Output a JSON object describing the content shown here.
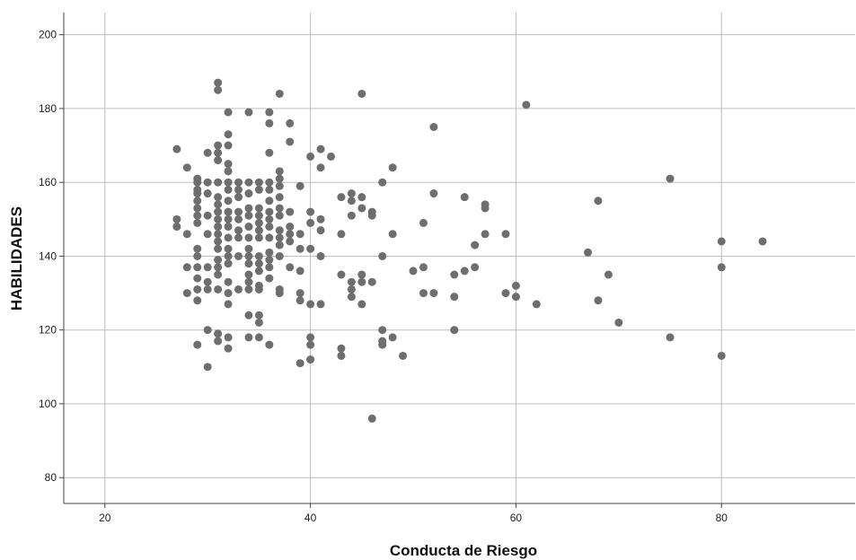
{
  "chart_data": {
    "type": "scatter",
    "xlabel": "Conducta de Riesgo",
    "ylabel": "HABILIDADES",
    "xlim": [
      16,
      93
    ],
    "ylim": [
      73,
      206
    ],
    "xticks": [
      20,
      40,
      60,
      80
    ],
    "yticks": [
      80,
      100,
      120,
      140,
      160,
      180,
      200
    ],
    "grid": true,
    "colors": {
      "point": "#6e6e6e",
      "grid": "#bdbdbd",
      "axis": "#444444"
    },
    "points": [
      [
        27,
        169
      ],
      [
        27,
        150
      ],
      [
        27,
        148
      ],
      [
        28,
        164
      ],
      [
        28,
        146
      ],
      [
        28,
        137
      ],
      [
        28,
        130
      ],
      [
        29,
        161
      ],
      [
        29,
        160
      ],
      [
        29,
        158
      ],
      [
        29,
        157
      ],
      [
        29,
        155
      ],
      [
        29,
        153
      ],
      [
        29,
        151
      ],
      [
        29,
        149
      ],
      [
        29,
        142
      ],
      [
        29,
        140
      ],
      [
        29,
        137
      ],
      [
        29,
        134
      ],
      [
        29,
        131
      ],
      [
        29,
        128
      ],
      [
        29,
        116
      ],
      [
        30,
        168
      ],
      [
        30,
        160
      ],
      [
        30,
        157
      ],
      [
        30,
        151
      ],
      [
        30,
        146
      ],
      [
        30,
        137
      ],
      [
        30,
        133
      ],
      [
        30,
        131
      ],
      [
        30,
        120
      ],
      [
        30,
        110
      ],
      [
        31,
        187
      ],
      [
        31,
        185
      ],
      [
        31,
        170
      ],
      [
        31,
        168
      ],
      [
        31,
        166
      ],
      [
        31,
        160
      ],
      [
        31,
        156
      ],
      [
        31,
        154
      ],
      [
        31,
        152
      ],
      [
        31,
        150
      ],
      [
        31,
        148
      ],
      [
        31,
        146
      ],
      [
        31,
        144
      ],
      [
        31,
        142
      ],
      [
        31,
        139
      ],
      [
        31,
        137
      ],
      [
        31,
        135
      ],
      [
        31,
        131
      ],
      [
        31,
        119
      ],
      [
        31,
        117
      ],
      [
        32,
        179
      ],
      [
        32,
        173
      ],
      [
        32,
        170
      ],
      [
        32,
        165
      ],
      [
        32,
        163
      ],
      [
        32,
        160
      ],
      [
        32,
        158
      ],
      [
        32,
        155
      ],
      [
        32,
        152
      ],
      [
        32,
        150
      ],
      [
        32,
        148
      ],
      [
        32,
        145
      ],
      [
        32,
        142
      ],
      [
        32,
        140
      ],
      [
        32,
        138
      ],
      [
        32,
        133
      ],
      [
        32,
        130
      ],
      [
        32,
        127
      ],
      [
        32,
        118
      ],
      [
        32,
        115
      ],
      [
        33,
        160
      ],
      [
        33,
        158
      ],
      [
        33,
        156
      ],
      [
        33,
        152
      ],
      [
        33,
        150
      ],
      [
        33,
        147
      ],
      [
        33,
        145
      ],
      [
        33,
        140
      ],
      [
        33,
        131
      ],
      [
        34,
        179
      ],
      [
        34,
        160
      ],
      [
        34,
        157
      ],
      [
        34,
        153
      ],
      [
        34,
        151
      ],
      [
        34,
        148
      ],
      [
        34,
        145
      ],
      [
        34,
        142
      ],
      [
        34,
        140
      ],
      [
        34,
        138
      ],
      [
        34,
        135
      ],
      [
        34,
        133
      ],
      [
        34,
        131
      ],
      [
        34,
        124
      ],
      [
        34,
        118
      ],
      [
        35,
        160
      ],
      [
        35,
        158
      ],
      [
        35,
        153
      ],
      [
        35,
        151
      ],
      [
        35,
        149
      ],
      [
        35,
        147
      ],
      [
        35,
        145
      ],
      [
        35,
        140
      ],
      [
        35,
        138
      ],
      [
        35,
        136
      ],
      [
        35,
        132
      ],
      [
        35,
        131
      ],
      [
        35,
        124
      ],
      [
        35,
        122
      ],
      [
        35,
        118
      ],
      [
        36,
        179
      ],
      [
        36,
        176
      ],
      [
        36,
        168
      ],
      [
        36,
        160
      ],
      [
        36,
        158
      ],
      [
        36,
        155
      ],
      [
        36,
        152
      ],
      [
        36,
        150
      ],
      [
        36,
        148
      ],
      [
        36,
        145
      ],
      [
        36,
        141
      ],
      [
        36,
        139
      ],
      [
        36,
        137
      ],
      [
        36,
        134
      ],
      [
        36,
        116
      ],
      [
        37,
        184
      ],
      [
        37,
        163
      ],
      [
        37,
        161
      ],
      [
        37,
        159
      ],
      [
        37,
        156
      ],
      [
        37,
        153
      ],
      [
        37,
        151
      ],
      [
        37,
        147
      ],
      [
        37,
        145
      ],
      [
        37,
        143
      ],
      [
        37,
        140
      ],
      [
        37,
        131
      ],
      [
        37,
        130
      ],
      [
        38,
        176
      ],
      [
        38,
        171
      ],
      [
        38,
        152
      ],
      [
        38,
        148
      ],
      [
        38,
        146
      ],
      [
        38,
        144
      ],
      [
        38,
        137
      ],
      [
        39,
        159
      ],
      [
        39,
        146
      ],
      [
        39,
        142
      ],
      [
        39,
        136
      ],
      [
        39,
        130
      ],
      [
        39,
        128
      ],
      [
        39,
        111
      ],
      [
        40,
        167
      ],
      [
        40,
        152
      ],
      [
        40,
        149
      ],
      [
        40,
        142
      ],
      [
        40,
        127
      ],
      [
        40,
        118
      ],
      [
        40,
        116
      ],
      [
        40,
        112
      ],
      [
        41,
        169
      ],
      [
        41,
        164
      ],
      [
        41,
        150
      ],
      [
        41,
        147
      ],
      [
        41,
        140
      ],
      [
        41,
        127
      ],
      [
        42,
        167
      ],
      [
        43,
        156
      ],
      [
        43,
        146
      ],
      [
        43,
        135
      ],
      [
        43,
        115
      ],
      [
        43,
        113
      ],
      [
        44,
        157
      ],
      [
        44,
        155
      ],
      [
        44,
        151
      ],
      [
        44,
        133
      ],
      [
        44,
        131
      ],
      [
        44,
        129
      ],
      [
        45,
        184
      ],
      [
        45,
        156
      ],
      [
        45,
        153
      ],
      [
        45,
        135
      ],
      [
        45,
        133
      ],
      [
        45,
        127
      ],
      [
        46,
        152
      ],
      [
        46,
        151
      ],
      [
        46,
        133
      ],
      [
        46,
        96
      ],
      [
        47,
        160
      ],
      [
        47,
        140
      ],
      [
        47,
        120
      ],
      [
        47,
        117
      ],
      [
        47,
        116
      ],
      [
        48,
        164
      ],
      [
        48,
        146
      ],
      [
        48,
        118
      ],
      [
        49,
        113
      ],
      [
        50,
        136
      ],
      [
        51,
        149
      ],
      [
        51,
        137
      ],
      [
        51,
        130
      ],
      [
        52,
        175
      ],
      [
        52,
        157
      ],
      [
        52,
        130
      ],
      [
        54,
        135
      ],
      [
        54,
        129
      ],
      [
        54,
        120
      ],
      [
        55,
        156
      ],
      [
        55,
        136
      ],
      [
        56,
        143
      ],
      [
        56,
        137
      ],
      [
        57,
        154
      ],
      [
        57,
        153
      ],
      [
        57,
        146
      ],
      [
        59,
        146
      ],
      [
        59,
        130
      ],
      [
        60,
        132
      ],
      [
        60,
        129
      ],
      [
        61,
        181
      ],
      [
        62,
        127
      ],
      [
        67,
        141
      ],
      [
        68,
        155
      ],
      [
        68,
        128
      ],
      [
        69,
        135
      ],
      [
        70,
        122
      ],
      [
        75,
        161
      ],
      [
        75,
        118
      ],
      [
        80,
        144
      ],
      [
        80,
        137
      ],
      [
        80,
        113
      ],
      [
        84,
        144
      ]
    ]
  }
}
